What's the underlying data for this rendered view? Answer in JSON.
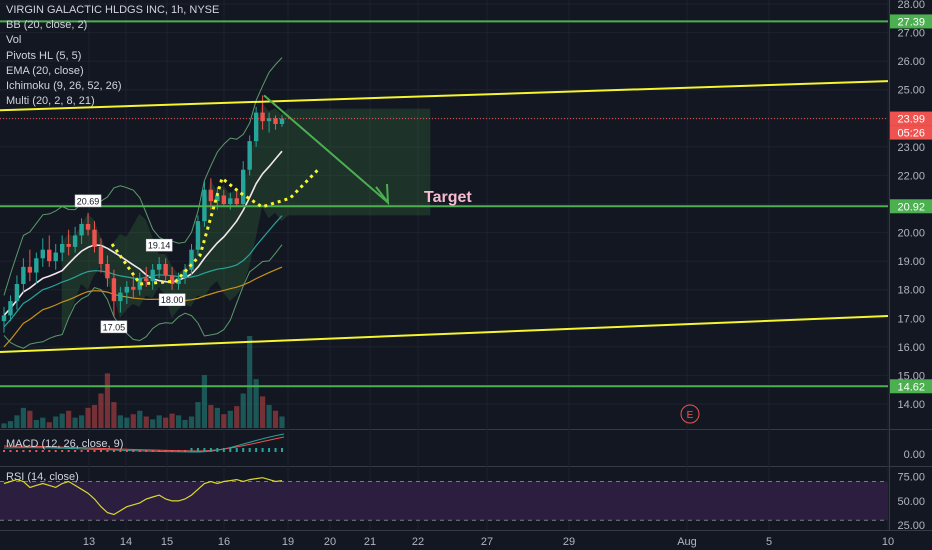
{
  "legend": {
    "title": "VIRGIN GALACTIC HLDGS INC, 1h, NYSE",
    "indicators": [
      "BB (20, close, 2)",
      "Vol",
      "Pivots HL (5, 5)",
      "EMA (20, close)",
      "Ichimoku (9, 26, 52, 26)",
      "Multi (20, 2, 8, 21)"
    ]
  },
  "price_badges": {
    "h1": "27.39",
    "h2": "20.92",
    "h3": "14.62",
    "last": "23.99",
    "countdown": "05:26"
  },
  "annotation": "Target",
  "pivot_labels": [
    "20.69",
    "19.14",
    "18.00",
    "17.05"
  ],
  "earnings_marker": "E",
  "macd_label": "MACD (12, 26, close, 9)",
  "rsi_label": "RSI (14, close)",
  "colors": {
    "background": "#131722",
    "up": "#26a69a",
    "down": "#ef5350",
    "trend": "#f5f530",
    "level": "#4caf50",
    "arrow": "#4caf50",
    "target": "#f8bbd0",
    "rsi": "#d9d92a",
    "rsi_band": "#2b1e3f"
  },
  "chart_data": [
    {
      "type": "candlestick",
      "title": "VIRGIN GALACTIC HLDGS INC, 1h, NYSE",
      "x_ticks": [
        "13",
        "14",
        "15",
        "16",
        "19",
        "20",
        "21",
        "22",
        "27",
        "29",
        "Aug",
        "5",
        "10"
      ],
      "y_ticks": [
        "28.00",
        "27.00",
        "26.00",
        "25.00",
        "24.00",
        "23.00",
        "22.00",
        "21.00",
        "20.00",
        "19.00",
        "18.00",
        "17.00",
        "16.00",
        "15.00",
        "14.00"
      ],
      "ylim": [
        13.4,
        28.2
      ],
      "horizontal_levels": [
        27.39,
        20.92,
        14.62
      ],
      "last_price": 23.99,
      "candles": [
        {
          "o": 16.9,
          "h": 17.4,
          "l": 16.5,
          "c": 17.1
        },
        {
          "o": 17.1,
          "h": 17.8,
          "l": 16.9,
          "c": 17.6
        },
        {
          "o": 17.6,
          "h": 18.5,
          "l": 17.3,
          "c": 18.2
        },
        {
          "o": 18.2,
          "h": 19.1,
          "l": 17.9,
          "c": 18.8
        },
        {
          "o": 18.8,
          "h": 19.4,
          "l": 18.3,
          "c": 18.6
        },
        {
          "o": 18.6,
          "h": 19.3,
          "l": 18.2,
          "c": 19.1
        },
        {
          "o": 19.1,
          "h": 19.8,
          "l": 18.8,
          "c": 19.4
        },
        {
          "o": 19.4,
          "h": 19.9,
          "l": 18.8,
          "c": 19.0
        },
        {
          "o": 19.0,
          "h": 19.6,
          "l": 18.7,
          "c": 19.3
        },
        {
          "o": 19.3,
          "h": 19.9,
          "l": 19.0,
          "c": 19.6
        },
        {
          "o": 19.6,
          "h": 20.1,
          "l": 19.2,
          "c": 19.5
        },
        {
          "o": 19.5,
          "h": 20.2,
          "l": 19.3,
          "c": 19.9
        },
        {
          "o": 19.9,
          "h": 20.5,
          "l": 19.6,
          "c": 20.3
        },
        {
          "o": 20.3,
          "h": 20.69,
          "l": 19.9,
          "c": 20.1
        },
        {
          "o": 20.1,
          "h": 20.4,
          "l": 19.3,
          "c": 19.5
        },
        {
          "o": 19.5,
          "h": 19.8,
          "l": 18.6,
          "c": 18.9
        },
        {
          "o": 18.9,
          "h": 19.2,
          "l": 18.1,
          "c": 18.4
        },
        {
          "o": 18.4,
          "h": 18.7,
          "l": 17.05,
          "c": 17.6
        },
        {
          "o": 17.6,
          "h": 18.1,
          "l": 17.2,
          "c": 17.9
        },
        {
          "o": 17.9,
          "h": 18.3,
          "l": 17.5,
          "c": 18.1
        },
        {
          "o": 18.1,
          "h": 18.5,
          "l": 17.7,
          "c": 18.0
        },
        {
          "o": 18.0,
          "h": 18.6,
          "l": 17.8,
          "c": 18.4
        },
        {
          "o": 18.4,
          "h": 18.8,
          "l": 18.1,
          "c": 18.3
        },
        {
          "o": 18.3,
          "h": 18.9,
          "l": 18.0,
          "c": 18.7
        },
        {
          "o": 18.7,
          "h": 19.14,
          "l": 18.4,
          "c": 18.9
        },
        {
          "o": 18.9,
          "h": 19.1,
          "l": 18.3,
          "c": 18.5
        },
        {
          "o": 18.5,
          "h": 18.8,
          "l": 18.0,
          "c": 18.2
        },
        {
          "o": 18.2,
          "h": 18.6,
          "l": 18.0,
          "c": 18.4
        },
        {
          "o": 18.4,
          "h": 18.9,
          "l": 18.2,
          "c": 18.7
        },
        {
          "o": 18.7,
          "h": 19.6,
          "l": 18.5,
          "c": 19.4
        },
        {
          "o": 19.4,
          "h": 20.6,
          "l": 19.2,
          "c": 20.4
        },
        {
          "o": 20.4,
          "h": 21.8,
          "l": 20.2,
          "c": 21.5
        },
        {
          "o": 21.5,
          "h": 21.9,
          "l": 20.8,
          "c": 21.1
        },
        {
          "o": 21.1,
          "h": 21.6,
          "l": 20.8,
          "c": 21.3
        },
        {
          "o": 21.3,
          "h": 21.5,
          "l": 20.9,
          "c": 21.0
        },
        {
          "o": 21.0,
          "h": 21.4,
          "l": 20.8,
          "c": 21.2
        },
        {
          "o": 21.2,
          "h": 21.5,
          "l": 20.9,
          "c": 21.0
        },
        {
          "o": 21.0,
          "h": 22.5,
          "l": 20.9,
          "c": 22.2
        },
        {
          "o": 22.2,
          "h": 23.4,
          "l": 22.0,
          "c": 23.2
        },
        {
          "o": 23.2,
          "h": 24.4,
          "l": 23.0,
          "c": 24.2
        },
        {
          "o": 24.2,
          "h": 24.8,
          "l": 23.6,
          "c": 23.9
        },
        {
          "o": 23.9,
          "h": 24.2,
          "l": 23.5,
          "c": 24.0
        },
        {
          "o": 24.0,
          "h": 24.1,
          "l": 23.6,
          "c": 23.8
        },
        {
          "o": 23.8,
          "h": 24.1,
          "l": 23.7,
          "c": 23.99
        }
      ],
      "volume": [
        8,
        12,
        22,
        35,
        30,
        14,
        18,
        10,
        20,
        25,
        30,
        18,
        22,
        35,
        40,
        60,
        95,
        45,
        22,
        18,
        24,
        30,
        20,
        15,
        22,
        18,
        25,
        22,
        14,
        20,
        45,
        92,
        40,
        35,
        24,
        30,
        38,
        60,
        160,
        85,
        55,
        40,
        30,
        20
      ],
      "rsi_ticks": [
        "75.00",
        "50.00",
        "25.00"
      ],
      "rsi_ylim": [
        20,
        85
      ],
      "rsi_values": [
        68,
        70,
        72,
        70,
        64,
        66,
        68,
        66,
        64,
        68,
        70,
        66,
        62,
        58,
        52,
        44,
        38,
        36,
        40,
        44,
        46,
        48,
        52,
        54,
        56,
        52,
        50,
        50,
        52,
        56,
        62,
        68,
        70,
        68,
        70,
        71,
        72,
        70,
        72,
        73,
        74,
        72,
        70,
        71
      ],
      "macd_ticks": [
        "0.00"
      ]
    }
  ]
}
